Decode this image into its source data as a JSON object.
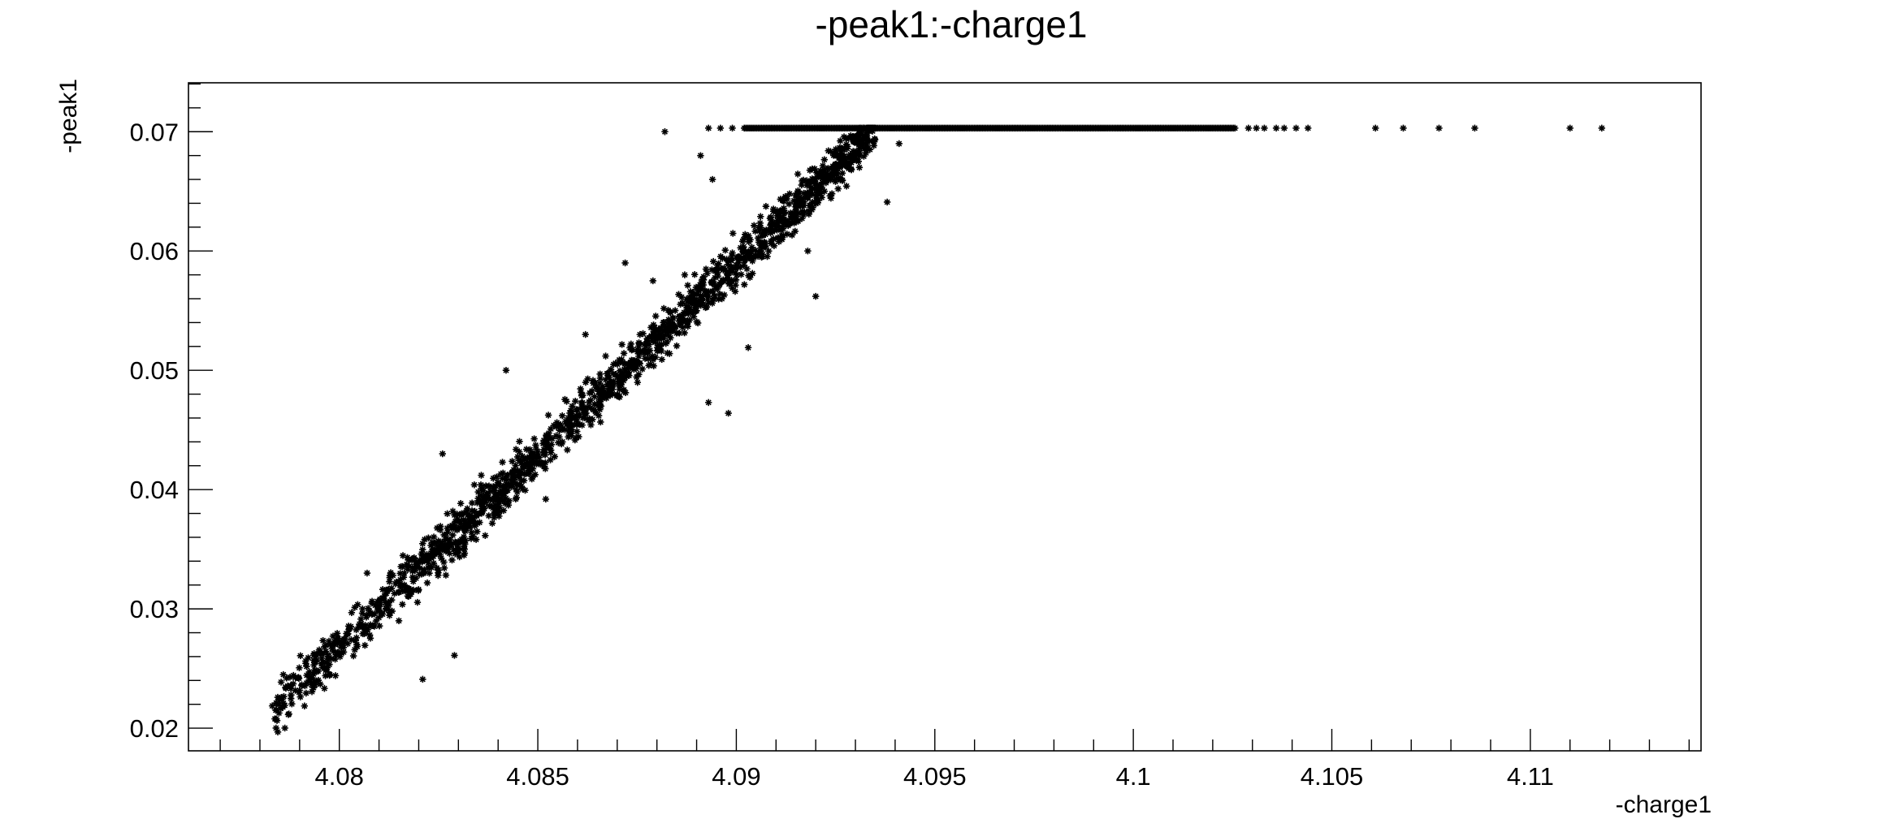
{
  "chart_data": {
    "type": "scatter",
    "title": "-peak1:-charge1",
    "xlabel": "-charge1",
    "ylabel": "-peak1",
    "xlim": [
      4.0762,
      4.1143
    ],
    "ylim": [
      0.0181,
      0.0741
    ],
    "x_ticks": [
      4.08,
      4.085,
      4.09,
      4.095,
      4.1,
      4.105,
      4.11
    ],
    "x_tick_labels": [
      "4.08",
      "4.085",
      "4.09",
      "4.095",
      "4.1",
      "4.105",
      "4.11"
    ],
    "y_ticks": [
      0.02,
      0.03,
      0.04,
      0.05,
      0.06,
      0.07
    ],
    "y_tick_labels": [
      "0.02",
      "0.03",
      "0.04",
      "0.05",
      "0.06",
      "0.07"
    ],
    "grid": false,
    "legend": "none",
    "marker": "asterisk",
    "marker_color": "#000000",
    "band": {
      "description": "dense linear band of events rising from lower-left to the saturation level",
      "x_start": 4.0783,
      "x_end": 4.0935,
      "y_start": 0.0213,
      "y_end": 0.0703,
      "y_spread": 0.0028,
      "count": 1600
    },
    "saturation": {
      "y": 0.0703,
      "dense_x_range": [
        4.0902,
        4.1026
      ],
      "sparse_x": [
        4.0893,
        4.0896,
        4.0899,
        4.1029,
        4.1031,
        4.1033,
        4.1036,
        4.1038,
        4.1041,
        4.1044,
        4.1061,
        4.1068,
        4.1077,
        4.1086,
        4.111,
        4.1118
      ]
    },
    "points": [
      [
        4.0882,
        0.07
      ],
      [
        4.092,
        0.0562
      ],
      [
        4.0938,
        0.0641
      ],
      [
        4.0898,
        0.0464
      ],
      [
        4.0893,
        0.0473
      ],
      [
        4.0821,
        0.0241
      ],
      [
        4.0829,
        0.0261
      ],
      [
        4.0785,
        0.0224
      ],
      [
        4.0784,
        0.0215
      ],
      [
        4.0842,
        0.05
      ],
      [
        4.0834,
        0.0404
      ],
      [
        4.0826,
        0.043
      ],
      [
        4.0877,
        0.051
      ],
      [
        4.0903,
        0.0519
      ],
      [
        4.0894,
        0.066
      ],
      [
        4.0891,
        0.068
      ],
      [
        4.0918,
        0.06
      ],
      [
        4.0887,
        0.058
      ],
      [
        4.0862,
        0.053
      ],
      [
        4.0872,
        0.059
      ],
      [
        4.0815,
        0.029
      ],
      [
        4.0807,
        0.033
      ],
      [
        4.0852,
        0.0392
      ],
      [
        4.0879,
        0.0575
      ],
      [
        4.0931,
        0.067
      ],
      [
        4.0941,
        0.069
      ]
    ]
  }
}
